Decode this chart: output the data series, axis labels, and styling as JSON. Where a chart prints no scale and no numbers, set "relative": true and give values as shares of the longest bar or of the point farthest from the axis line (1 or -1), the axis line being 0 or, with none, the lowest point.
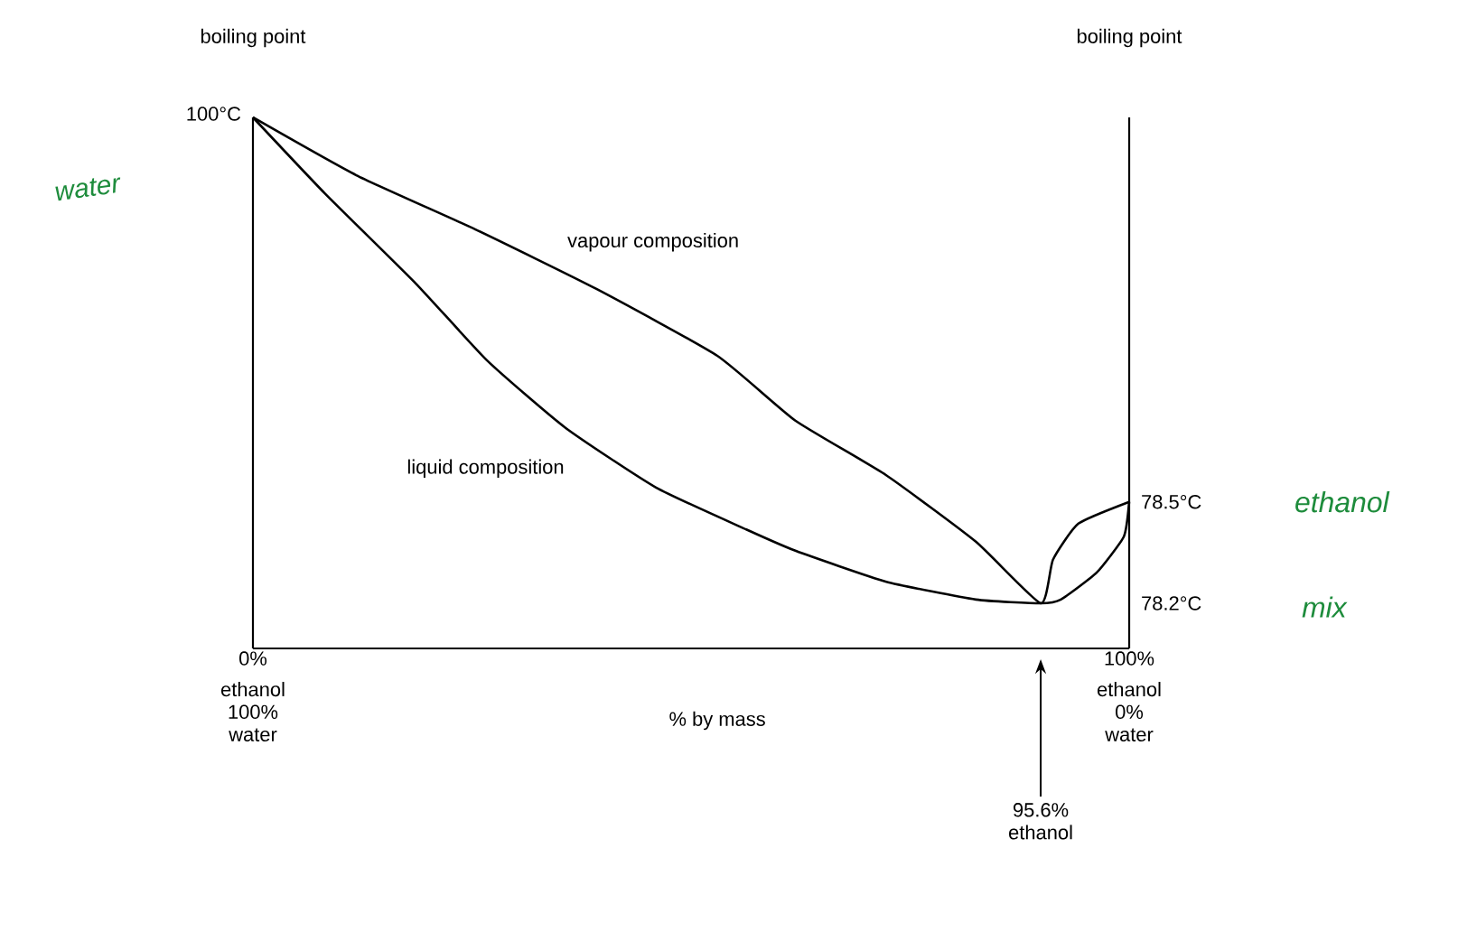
{
  "chart_data": {
    "type": "line",
    "relative": true,
    "xlabel": "% by mass",
    "ylabel": "boiling point",
    "y2label": "boiling point",
    "xlim": [
      0,
      100
    ],
    "xticks": [
      {
        "value": 0,
        "label": "0%"
      },
      {
        "value": 100,
        "label": "100%"
      }
    ],
    "series": [
      {
        "name": "vapour composition",
        "color": "#000000",
        "x": [
          0,
          11.8,
          25.4,
          39.2,
          53.0,
          61.9,
          72.2,
          82.5,
          89.9,
          91.3,
          94.2,
          100
        ],
        "values": [
          1.0,
          0.891,
          0.789,
          0.677,
          0.551,
          0.429,
          0.327,
          0.201,
          0.085,
          0.167,
          0.235,
          0.276
        ]
      },
      {
        "name": "liquid composition",
        "color": "#000000",
        "x": [
          0,
          8.2,
          18.6,
          26.8,
          35.7,
          46.0,
          56.3,
          61.9,
          72.2,
          82.5,
          89.9,
          92.2,
          96.3,
          99.4,
          100
        ],
        "values": [
          1.0,
          0.857,
          0.687,
          0.541,
          0.415,
          0.303,
          0.224,
          0.184,
          0.126,
          0.092,
          0.085,
          0.092,
          0.143,
          0.211,
          0.276
        ]
      }
    ],
    "annotations": [
      {
        "text": "100°C",
        "x": 0,
        "y": 1.0
      },
      {
        "text": "78.5°C",
        "x": 100,
        "y": 0.276
      },
      "78.2°C",
      "95.6% ethanol",
      "water",
      "ethanol",
      "mix",
      "ethanol 100% water",
      "ethanol 0% water"
    ]
  }
}
